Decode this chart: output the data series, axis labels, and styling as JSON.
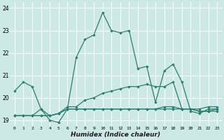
{
  "title": "",
  "xlabel": "Humidex (Indice chaleur)",
  "ylabel": "",
  "bg_color": "#cce9e5",
  "grid_color": "#ffffff",
  "line_color": "#2d7d6e",
  "xlim": [
    -0.5,
    23.5
  ],
  "ylim": [
    18.75,
    24.25
  ],
  "yticks": [
    19,
    20,
    21,
    22,
    23,
    24
  ],
  "xticks": [
    0,
    1,
    2,
    3,
    4,
    5,
    6,
    7,
    8,
    9,
    10,
    11,
    12,
    13,
    14,
    15,
    16,
    17,
    18,
    19,
    20,
    21,
    22,
    23
  ],
  "series": [
    [
      20.3,
      20.7,
      20.5,
      19.5,
      19.0,
      18.9,
      19.5,
      21.8,
      22.6,
      22.8,
      23.8,
      23.0,
      22.9,
      23.0,
      21.3,
      21.4,
      19.8,
      21.2,
      21.5,
      20.7,
      19.4,
      19.3,
      19.5,
      19.5
    ],
    [
      19.2,
      19.2,
      19.2,
      19.5,
      19.2,
      19.3,
      19.6,
      19.6,
      19.9,
      20.0,
      20.2,
      20.3,
      20.4,
      20.5,
      20.5,
      20.6,
      20.5,
      20.5,
      20.7,
      19.5,
      19.5,
      19.5,
      19.6,
      19.6
    ],
    [
      19.2,
      19.2,
      19.2,
      19.2,
      19.2,
      19.3,
      19.5,
      19.5,
      19.5,
      19.5,
      19.5,
      19.5,
      19.5,
      19.5,
      19.5,
      19.5,
      19.5,
      19.6,
      19.6,
      19.5,
      19.5,
      19.4,
      19.4,
      19.5
    ],
    [
      19.2,
      19.2,
      19.2,
      19.2,
      19.2,
      19.3,
      19.5,
      19.5,
      19.5,
      19.5,
      19.5,
      19.5,
      19.5,
      19.5,
      19.5,
      19.5,
      19.5,
      19.5,
      19.5,
      19.5,
      19.5,
      19.4,
      19.4,
      19.4
    ]
  ]
}
